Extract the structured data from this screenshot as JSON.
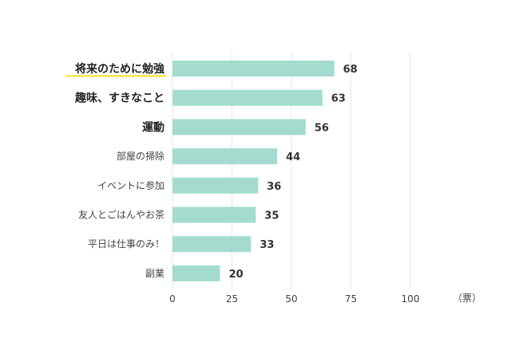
{
  "chart_data": {
    "type": "bar",
    "orientation": "horizontal",
    "categories": [
      "将来のために勉強",
      "趣味、すきなこと",
      "運動",
      "部屋の掃除",
      "イベントに参加",
      "友人とごはんやお茶",
      "平日は仕事のみ！",
      "副業"
    ],
    "values": [
      68,
      63,
      56,
      44,
      36,
      35,
      33,
      20
    ],
    "highlighted": [
      true,
      true,
      true,
      false,
      false,
      false,
      false,
      false
    ],
    "underlined": [
      true,
      false,
      false,
      false,
      false,
      false,
      false,
      false
    ],
    "xlim": [
      0,
      100
    ],
    "xticks": [
      "0",
      "25",
      "50",
      "75",
      "100"
    ],
    "unit_label": "（票）",
    "grid": true,
    "colors": {
      "bar": "#a3dccf",
      "grid": "#e6e6e6",
      "underline": "#f2e84a",
      "text_bold": "#222222",
      "text_normal": "#444444",
      "value_text": "#333333"
    }
  }
}
